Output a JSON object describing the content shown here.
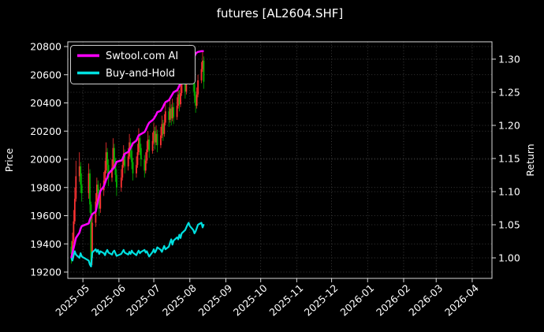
{
  "chart_data": {
    "type": "candlestick+line",
    "title": "futures [AL2604.SHF]",
    "left_axis": {
      "label": "Price",
      "ticks": [
        19200,
        19400,
        19600,
        19800,
        20000,
        20200,
        20400,
        20600,
        20800
      ],
      "ylim": [
        19155,
        20833
      ]
    },
    "right_axis": {
      "label": "Return",
      "ticks": [
        1.0,
        1.05,
        1.1,
        1.15,
        1.2,
        1.25,
        1.3
      ],
      "ylim": [
        0.969,
        1.326
      ]
    },
    "x_axis": {
      "domain": [
        "2025-04-18",
        "2026-04-18"
      ],
      "ticks": [
        {
          "label": "2025-05",
          "date": "2025-05-01"
        },
        {
          "label": "2025-06",
          "date": "2025-06-01"
        },
        {
          "label": "2025-07",
          "date": "2025-07-01"
        },
        {
          "label": "2025-08",
          "date": "2025-08-01"
        },
        {
          "label": "2025-09",
          "date": "2025-09-01"
        },
        {
          "label": "2025-10",
          "date": "2025-10-01"
        },
        {
          "label": "2025-11",
          "date": "2025-11-01"
        },
        {
          "label": "2025-12",
          "date": "2025-12-01"
        },
        {
          "label": "2026-01",
          "date": "2026-01-01"
        },
        {
          "label": "2026-02",
          "date": "2026-02-01"
        },
        {
          "label": "2026-03",
          "date": "2026-03-01"
        },
        {
          "label": "2026-04",
          "date": "2026-04-01"
        }
      ]
    },
    "legend": [
      {
        "name": "Swtool.com AI",
        "color": "#ff00ff"
      },
      {
        "name": "Buy-and-Hold",
        "color": "#00e0e0"
      }
    ],
    "colors": {
      "background": "#000000",
      "text": "#ffffff",
      "grid": "#4a4a4a",
      "spine": "#d9d9d9",
      "candle_up": "#ff3232",
      "candle_down": "#00b300",
      "ai_line": "#ff00ff",
      "bh_line": "#00e0e0"
    },
    "candles": [
      [
        "2025-04-21",
        19380,
        19420,
        19260,
        19330
      ],
      [
        "2025-04-22",
        19330,
        19480,
        19300,
        19420
      ],
      [
        "2025-04-23",
        19420,
        19640,
        19400,
        19560
      ],
      [
        "2025-04-24",
        19560,
        19800,
        19540,
        19720
      ],
      [
        "2025-04-25",
        19720,
        19990,
        19700,
        19880
      ],
      [
        "2025-04-28",
        19880,
        20050,
        19840,
        19950
      ],
      [
        "2025-04-29",
        19950,
        19980,
        19760,
        19820
      ],
      [
        "2025-04-30",
        19820,
        19900,
        19700,
        19760
      ],
      [
        "2025-05-06",
        19760,
        19970,
        19720,
        19900
      ],
      [
        "2025-05-07",
        19900,
        19930,
        19620,
        19680
      ],
      [
        "2025-05-08",
        19680,
        19700,
        19240,
        19260
      ],
      [
        "2025-05-09",
        19300,
        19600,
        19250,
        19550
      ],
      [
        "2025-05-12",
        19550,
        19760,
        19520,
        19700
      ],
      [
        "2025-05-13",
        19700,
        19870,
        19680,
        19820
      ],
      [
        "2025-05-14",
        19820,
        19850,
        19690,
        19760
      ],
      [
        "2025-05-15",
        19760,
        19790,
        19600,
        19650
      ],
      [
        "2025-05-16",
        19650,
        19830,
        19620,
        19780
      ],
      [
        "2025-05-19",
        19780,
        19910,
        19740,
        19850
      ],
      [
        "2025-05-20",
        19850,
        19990,
        19820,
        19920
      ],
      [
        "2025-05-21",
        19920,
        20120,
        19900,
        20050
      ],
      [
        "2025-05-22",
        20050,
        20080,
        19900,
        19960
      ],
      [
        "2025-05-23",
        19960,
        20000,
        19810,
        19870
      ],
      [
        "2025-05-26",
        19870,
        20000,
        19840,
        19940
      ],
      [
        "2025-05-27",
        19940,
        20150,
        19920,
        20080
      ],
      [
        "2025-05-28",
        20080,
        20110,
        19930,
        19980
      ],
      [
        "2025-05-29",
        19980,
        20010,
        19840,
        19890
      ],
      [
        "2025-05-30",
        19890,
        19930,
        19740,
        19800
      ],
      [
        "2025-06-03",
        19800,
        19930,
        19770,
        19870
      ],
      [
        "2025-06-04",
        19870,
        20020,
        19850,
        19960
      ],
      [
        "2025-06-05",
        19960,
        20100,
        19940,
        20040
      ],
      [
        "2025-06-06",
        20040,
        20070,
        19900,
        19950
      ],
      [
        "2025-06-09",
        19950,
        20080,
        19920,
        20020
      ],
      [
        "2025-06-10",
        20020,
        20180,
        20000,
        20120
      ],
      [
        "2025-06-11",
        20120,
        20150,
        20010,
        20060
      ],
      [
        "2025-06-12",
        20060,
        20090,
        19930,
        19980
      ],
      [
        "2025-06-13",
        19980,
        20010,
        19850,
        19900
      ],
      [
        "2025-06-16",
        19900,
        20020,
        19870,
        19960
      ],
      [
        "2025-06-17",
        19960,
        20110,
        19940,
        20050
      ],
      [
        "2025-06-18",
        20050,
        20220,
        20030,
        20150
      ],
      [
        "2025-06-19",
        20150,
        20180,
        20030,
        20080
      ],
      [
        "2025-06-20",
        20080,
        20110,
        19950,
        20000
      ],
      [
        "2025-06-23",
        20000,
        20030,
        19870,
        19920
      ],
      [
        "2025-06-24",
        19920,
        20050,
        19900,
        19990
      ],
      [
        "2025-06-25",
        19990,
        20130,
        19970,
        20070
      ],
      [
        "2025-06-26",
        20070,
        20200,
        20050,
        20140
      ],
      [
        "2025-06-27",
        20140,
        20170,
        20010,
        20060
      ],
      [
        "2025-06-30",
        20060,
        20190,
        20040,
        20130
      ],
      [
        "2025-07-01",
        20130,
        20260,
        20110,
        20200
      ],
      [
        "2025-07-02",
        20200,
        20230,
        20070,
        20120
      ],
      [
        "2025-07-03",
        20120,
        20240,
        20100,
        20180
      ],
      [
        "2025-07-04",
        20180,
        20210,
        20050,
        20100
      ],
      [
        "2025-07-07",
        20100,
        20230,
        20080,
        20170
      ],
      [
        "2025-07-08",
        20170,
        20310,
        20150,
        20250
      ],
      [
        "2025-07-09",
        20250,
        20280,
        20130,
        20180
      ],
      [
        "2025-07-10",
        20180,
        20320,
        20160,
        20260
      ],
      [
        "2025-07-11",
        20260,
        20400,
        20240,
        20340
      ],
      [
        "2025-07-14",
        20340,
        20370,
        20230,
        20280
      ],
      [
        "2025-07-15",
        20280,
        20420,
        20260,
        20360
      ],
      [
        "2025-07-16",
        20360,
        20390,
        20240,
        20290
      ],
      [
        "2025-07-17",
        20290,
        20430,
        20270,
        20370
      ],
      [
        "2025-07-18",
        20370,
        20400,
        20250,
        20300
      ],
      [
        "2025-07-21",
        20300,
        20440,
        20280,
        20380
      ],
      [
        "2025-07-22",
        20380,
        20520,
        20360,
        20460
      ],
      [
        "2025-07-23",
        20460,
        20490,
        20340,
        20390
      ],
      [
        "2025-07-24",
        20390,
        20530,
        20370,
        20470
      ],
      [
        "2025-07-25",
        20470,
        20610,
        20450,
        20550
      ],
      [
        "2025-07-28",
        20550,
        20580,
        20430,
        20480
      ],
      [
        "2025-07-29",
        20480,
        20620,
        20460,
        20560
      ],
      [
        "2025-07-30",
        20560,
        20700,
        20540,
        20640
      ],
      [
        "2025-07-31",
        20640,
        20780,
        20620,
        20700
      ],
      [
        "2025-08-01",
        20700,
        20730,
        20560,
        20620
      ],
      [
        "2025-08-04",
        20620,
        20650,
        20480,
        20540
      ],
      [
        "2025-08-05",
        20540,
        20570,
        20400,
        20450
      ],
      [
        "2025-08-06",
        20450,
        20480,
        20330,
        20380
      ],
      [
        "2025-08-07",
        20380,
        20510,
        20360,
        20460
      ],
      [
        "2025-08-08",
        20460,
        20600,
        20440,
        20560
      ],
      [
        "2025-08-11",
        20560,
        20690,
        20540,
        20640
      ],
      [
        "2025-08-12",
        20640,
        20760,
        20620,
        20700
      ],
      [
        "2025-08-13",
        20700,
        20730,
        20500,
        20550
      ]
    ],
    "series": {
      "ai": [
        1.0,
        1.008,
        1.015,
        1.022,
        1.03,
        1.038,
        1.044,
        1.048,
        1.052,
        1.058,
        1.062,
        1.066,
        1.07,
        1.078,
        1.086,
        1.094,
        1.101,
        1.108,
        1.113,
        1.118,
        1.121,
        1.127,
        1.133,
        1.135,
        1.137,
        1.141,
        1.145,
        1.147,
        1.149,
        1.153,
        1.157,
        1.16,
        1.163,
        1.166,
        1.169,
        1.173,
        1.177,
        1.181,
        1.185,
        1.186,
        1.187,
        1.19,
        1.193,
        1.197,
        1.201,
        1.204,
        1.208,
        1.21,
        1.213,
        1.216,
        1.22,
        1.222,
        1.225,
        1.228,
        1.232,
        1.235,
        1.238,
        1.241,
        1.244,
        1.247,
        1.25,
        1.253,
        1.256,
        1.26,
        1.264,
        1.268,
        1.273,
        1.279,
        1.285,
        1.29,
        1.294,
        1.299,
        1.304,
        1.308,
        1.31,
        1.311,
        1.312,
        1.312,
        1.312
      ],
      "bh": [
        1.0,
        0.996,
        1.004,
        1.01,
        1.005,
        1.0,
        1.007,
        1.002,
        0.996,
        0.99,
        0.987,
        1.008,
        1.013,
        1.009,
        1.012,
        1.006,
        1.01,
        1.007,
        1.004,
        1.009,
        1.012,
        1.008,
        1.005,
        1.009,
        1.011,
        1.007,
        1.003,
        1.006,
        1.009,
        1.012,
        1.008,
        1.005,
        1.009,
        1.006,
        1.011,
        1.008,
        1.004,
        1.008,
        1.011,
        1.007,
        1.009,
        1.012,
        1.008,
        1.01,
        1.006,
        1.002,
        1.009,
        1.013,
        1.008,
        1.011,
        1.016,
        1.012,
        1.009,
        1.014,
        1.018,
        1.013,
        1.017,
        1.023,
        1.028,
        1.02,
        1.026,
        1.031,
        1.028,
        1.035,
        1.03,
        1.037,
        1.042,
        1.046,
        1.05,
        1.053,
        1.048,
        1.042,
        1.037,
        1.04,
        1.045,
        1.05,
        1.053,
        1.046,
        1.051
      ]
    }
  }
}
